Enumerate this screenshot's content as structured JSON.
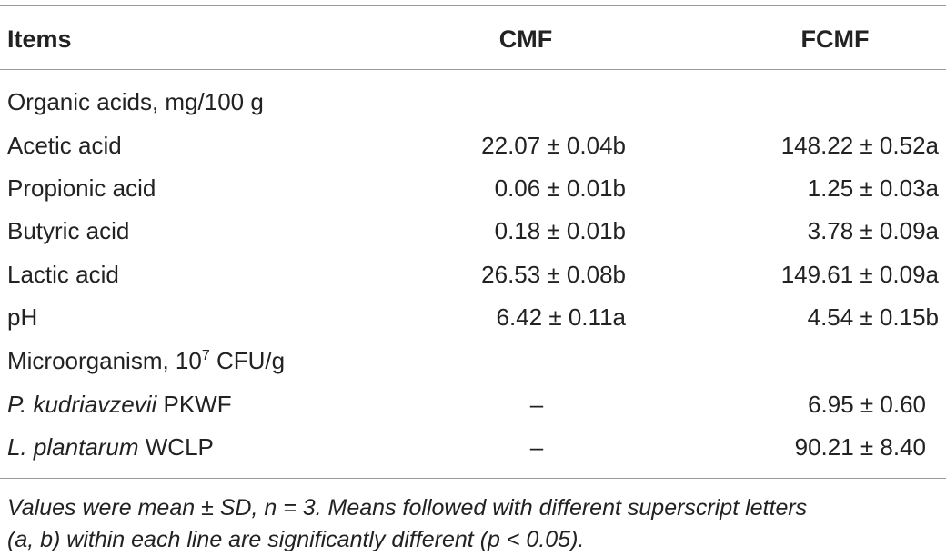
{
  "header": {
    "items": "Items",
    "cmf": "CMF",
    "fcmf": "FCMF"
  },
  "rows": [
    {
      "label": "Organic acids, mg/100 g",
      "cmf": "",
      "fcmf": ""
    },
    {
      "label": "Acetic acid",
      "cmf": "22.07 ± 0.04b",
      "fcmf": "148.22 ± 0.52a"
    },
    {
      "label": "Propionic acid",
      "cmf": "0.06 ± 0.01b",
      "fcmf": "1.25 ± 0.03a"
    },
    {
      "label": "Butyric acid",
      "cmf": "0.18 ± 0.01b",
      "fcmf": "3.78 ± 0.09a"
    },
    {
      "label": "Lactic acid",
      "cmf": "26.53 ± 0.08b",
      "fcmf": "149.61 ± 0.09a"
    },
    {
      "label": "pH",
      "cmf": "6.42 ± 0.11a",
      "fcmf": "4.54 ± 0.15b"
    },
    {
      "label_pre": "Microorganism, 10",
      "label_sup": "7",
      "label_post": " CFU/g",
      "cmf": "",
      "fcmf": ""
    },
    {
      "label_italic": "P. kudriavzevii",
      "label_rest": " PKWF",
      "cmf": "–",
      "fcmf": "6.95 ± 0.60"
    },
    {
      "label_italic": "L. plantarum",
      "label_rest": " WCLP",
      "cmf": "–",
      "fcmf": "90.21 ± 8.40"
    }
  ],
  "footnote": {
    "line1": "Values were mean ± SD, n = 3. Means followed with different superscript letters",
    "line2": "(a, b) within each line are significantly different (p < 0.05)."
  }
}
